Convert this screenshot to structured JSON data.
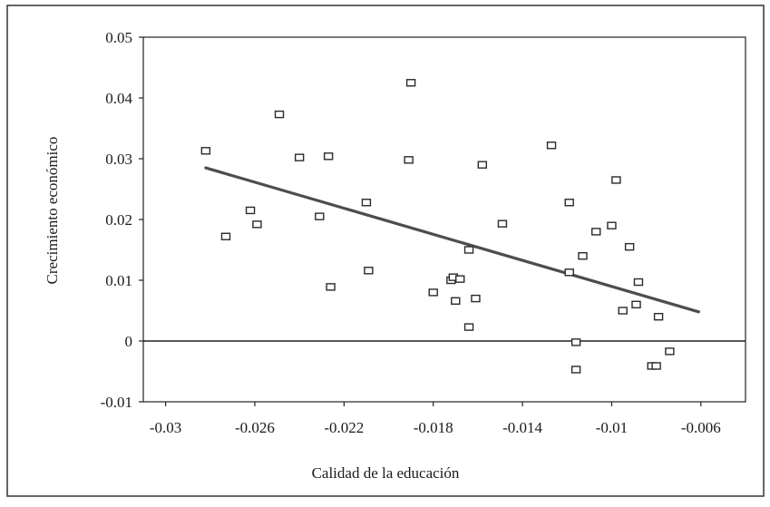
{
  "chart_data": {
    "type": "scatter",
    "title": "",
    "xlabel": "Calidad de la educación",
    "ylabel": "Crecimiento económico",
    "xlim": [
      -0.031,
      -0.004
    ],
    "ylim": [
      -0.01,
      0.05
    ],
    "x_ticks": [
      -0.03,
      -0.026,
      -0.022,
      -0.018,
      -0.014,
      -0.01,
      -0.006
    ],
    "x_tick_labels": [
      "-0.03",
      "-0.026",
      "-0.022",
      "-0.018",
      "-0.014",
      "-0.01",
      "-0.006"
    ],
    "y_ticks": [
      -0.01,
      0,
      0.01,
      0.02,
      0.03,
      0.04,
      0.05
    ],
    "y_tick_labels": [
      "-0.01",
      "0",
      "0.01",
      "0.02",
      "0.03",
      "0.04",
      "0.05"
    ],
    "grid": false,
    "legend": "none",
    "marker": "hollow-square",
    "series": [
      {
        "points": [
          [
            -0.0282,
            0.0313
          ],
          [
            -0.0273,
            0.0172
          ],
          [
            -0.0262,
            0.0215
          ],
          [
            -0.0259,
            0.0192
          ],
          [
            -0.0249,
            0.0373
          ],
          [
            -0.024,
            0.0302
          ],
          [
            -0.0227,
            0.0304
          ],
          [
            -0.0231,
            0.0205
          ],
          [
            -0.0226,
            0.0089
          ],
          [
            -0.021,
            0.0228
          ],
          [
            -0.0209,
            0.0116
          ],
          [
            -0.0191,
            0.0298
          ],
          [
            -0.019,
            0.0425
          ],
          [
            -0.018,
            0.008
          ],
          [
            -0.0172,
            0.01
          ],
          [
            -0.0171,
            0.0105
          ],
          [
            -0.0168,
            0.0102
          ],
          [
            -0.017,
            0.0066
          ],
          [
            -0.0164,
            0.015
          ],
          [
            -0.0164,
            0.0023
          ],
          [
            -0.0161,
            0.007
          ],
          [
            -0.0158,
            0.029
          ],
          [
            -0.0149,
            0.0193
          ],
          [
            -0.0127,
            0.0322
          ],
          [
            -0.0119,
            0.0228
          ],
          [
            -0.0119,
            0.0113
          ],
          [
            -0.0116,
            -0.0002
          ],
          [
            -0.0116,
            -0.0047
          ],
          [
            -0.0113,
            0.014
          ],
          [
            -0.0107,
            0.018
          ],
          [
            -0.01,
            0.019
          ],
          [
            -0.0098,
            0.0265
          ],
          [
            -0.0095,
            0.005
          ],
          [
            -0.0092,
            0.0155
          ],
          [
            -0.0089,
            0.006
          ],
          [
            -0.0088,
            0.0097
          ],
          [
            -0.0082,
            -0.0041
          ],
          [
            -0.008,
            -0.0041
          ],
          [
            -0.0079,
            0.004
          ],
          [
            -0.0074,
            -0.0017
          ]
        ]
      }
    ],
    "trendline": {
      "x": [
        -0.0282,
        -0.0061
      ],
      "y": [
        0.0285,
        0.0048
      ]
    },
    "colors": {
      "markers": "#2a2a2a",
      "trendline": "#4d4d4d",
      "axes": "#222222"
    }
  }
}
